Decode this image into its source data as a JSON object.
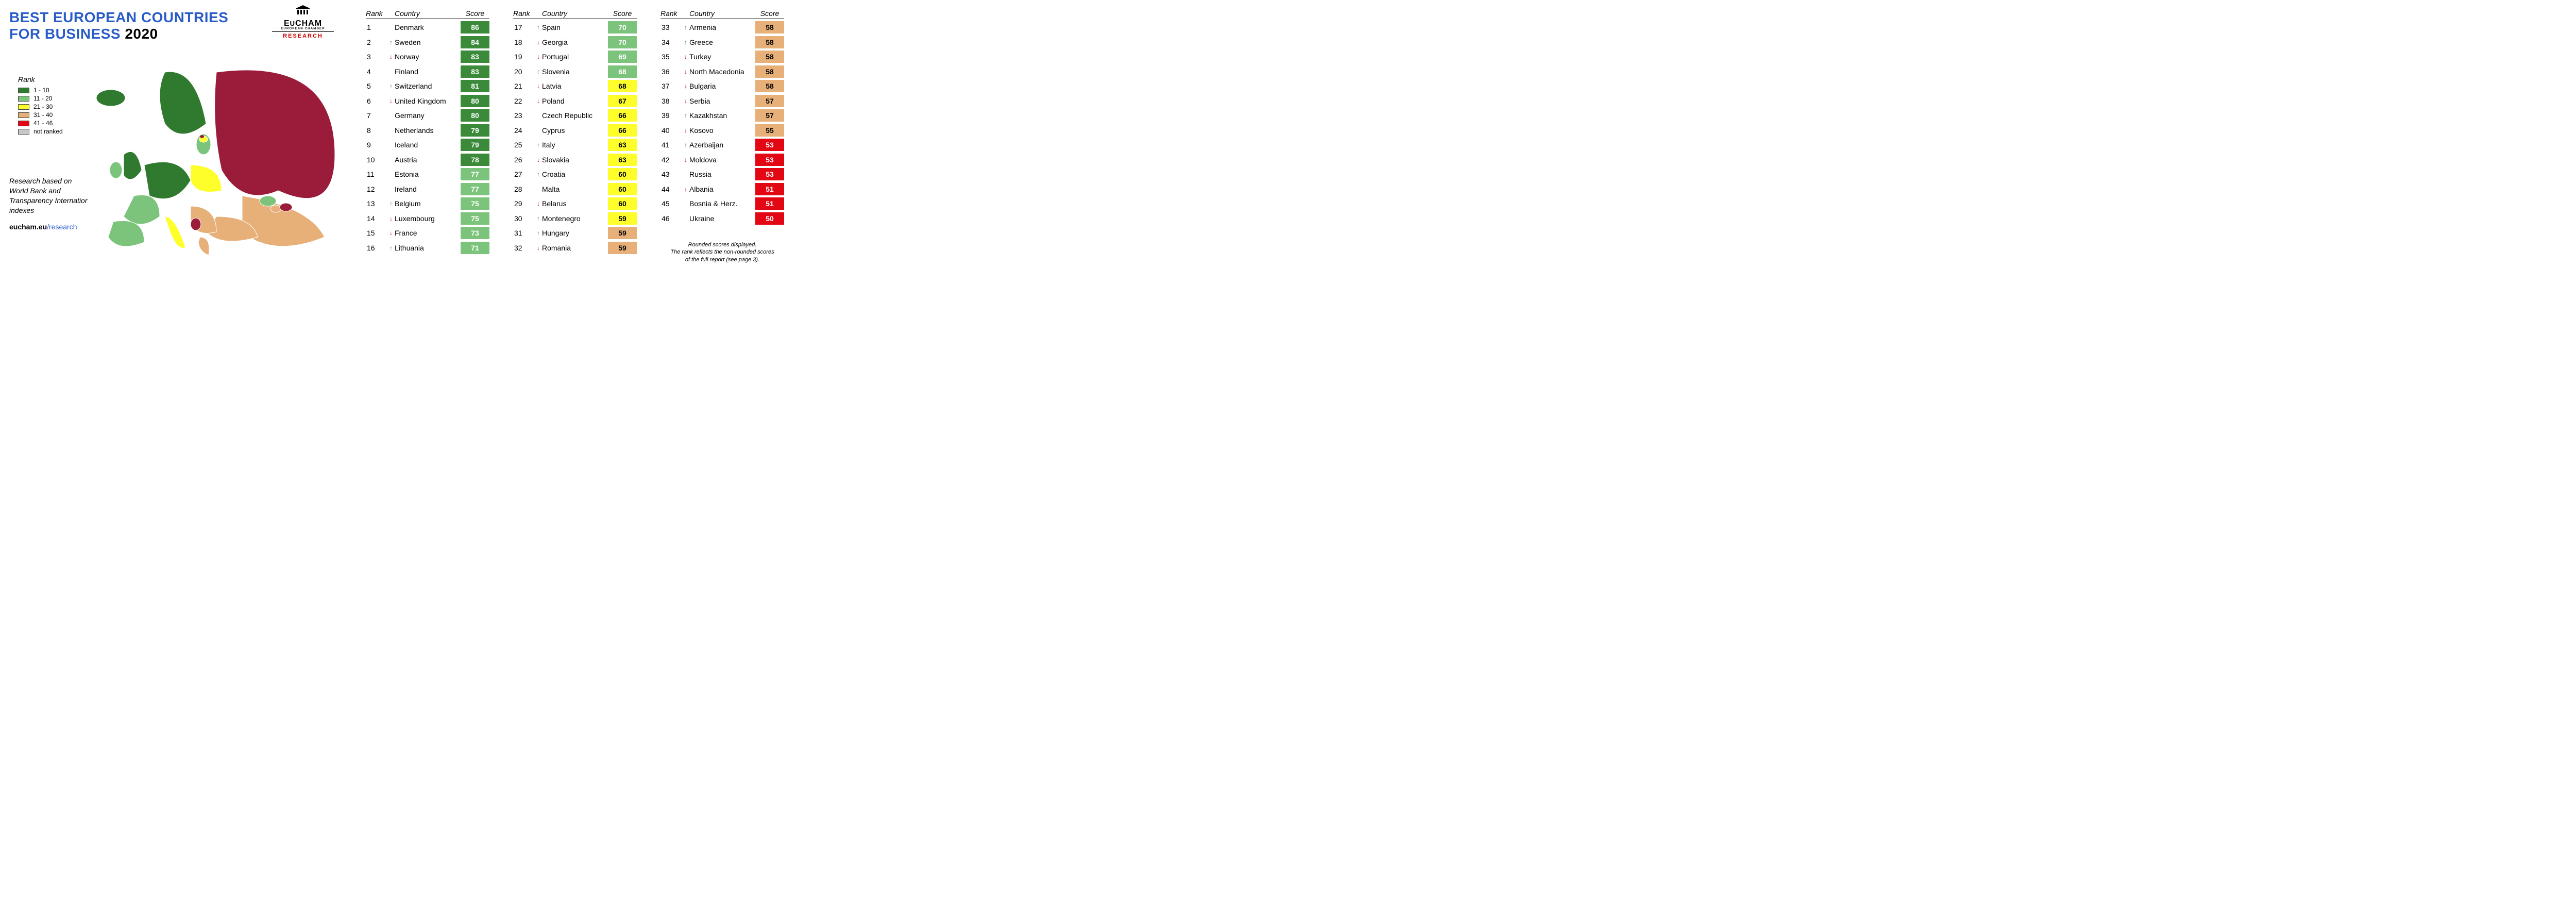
{
  "title_line1": "BEST EUROPEAN COUNTRIES",
  "title_line2_prefix": "FOR BUSINESS ",
  "title_year": "2020",
  "title_color_blue": "#2a5cc8",
  "title_color_black": "#000000",
  "title_fontsize": 28,
  "logo": {
    "name": "EUCHAM",
    "sub": "EUROPEAN CHAMBER",
    "research": "RESEARCH",
    "research_color": "#cc0000"
  },
  "legend": {
    "title": "Rank",
    "items": [
      {
        "label": "1 - 10",
        "color": "#2f7a2f"
      },
      {
        "label": "11 - 20",
        "color": "#7cc47c"
      },
      {
        "label": "21 - 30",
        "color": "#feff2a"
      },
      {
        "label": "31 - 40",
        "color": "#e6b078"
      },
      {
        "label": "41 - 46",
        "color": "#e30613"
      },
      {
        "label": "not ranked",
        "color": "#c8c8c8"
      }
    ]
  },
  "note_line1": "Research based on",
  "note_line2": "World Bank and",
  "note_line3": "Transparency International",
  "note_line4": "indexes",
  "url_domain": "eucham.eu",
  "url_path": "/research",
  "map": {
    "type": "choropleth-map",
    "region": "Europe",
    "background_color": "#ffffff",
    "border_color": "#ffffff",
    "colors_by_rank_bucket": {
      "1-10": "#2f7a2f",
      "11-20": "#7cc47c",
      "21-30": "#feff2a",
      "31-40": "#e6b078",
      "41-46": "#9b1c3a",
      "not_ranked": "#c8c8c8"
    }
  },
  "score_colors": {
    "dark_green": {
      "bg": "#3a8a3a",
      "fg": "#ffffff"
    },
    "light_green": {
      "bg": "#7cc47c",
      "fg": "#ffffff"
    },
    "yellow": {
      "bg": "#feff2a",
      "fg": "#000000"
    },
    "tan": {
      "bg": "#e6b078",
      "fg": "#000000"
    },
    "red": {
      "bg": "#e30613",
      "fg": "#ffffff"
    }
  },
  "columns": {
    "rank": "Rank",
    "country": "Country",
    "score": "Score"
  },
  "rankings": [
    {
      "rank": 1,
      "country": "Denmark",
      "score": 86,
      "trend": "",
      "tier": "dark_green"
    },
    {
      "rank": 2,
      "country": "Sweden",
      "score": 84,
      "trend": "up",
      "tier": "dark_green"
    },
    {
      "rank": 3,
      "country": "Norway",
      "score": 83,
      "trend": "down",
      "tier": "dark_green"
    },
    {
      "rank": 4,
      "country": "Finland",
      "score": 83,
      "trend": "",
      "tier": "dark_green"
    },
    {
      "rank": 5,
      "country": "Switzerland",
      "score": 81,
      "trend": "up",
      "tier": "dark_green"
    },
    {
      "rank": 6,
      "country": "United Kingdom",
      "score": 80,
      "trend": "down",
      "tier": "dark_green"
    },
    {
      "rank": 7,
      "country": "Germany",
      "score": 80,
      "trend": "",
      "tier": "dark_green"
    },
    {
      "rank": 8,
      "country": "Netherlands",
      "score": 79,
      "trend": "",
      "tier": "dark_green"
    },
    {
      "rank": 9,
      "country": "Iceland",
      "score": 79,
      "trend": "",
      "tier": "dark_green"
    },
    {
      "rank": 10,
      "country": "Austria",
      "score": 78,
      "trend": "",
      "tier": "dark_green"
    },
    {
      "rank": 11,
      "country": "Estonia",
      "score": 77,
      "trend": "",
      "tier": "light_green"
    },
    {
      "rank": 12,
      "country": "Ireland",
      "score": 77,
      "trend": "",
      "tier": "light_green"
    },
    {
      "rank": 13,
      "country": "Belgium",
      "score": 75,
      "trend": "up",
      "tier": "light_green"
    },
    {
      "rank": 14,
      "country": "Luxembourg",
      "score": 75,
      "trend": "down",
      "tier": "light_green"
    },
    {
      "rank": 15,
      "country": "France",
      "score": 73,
      "trend": "down",
      "tier": "light_green"
    },
    {
      "rank": 16,
      "country": "Lithuania",
      "score": 71,
      "trend": "up",
      "tier": "light_green"
    },
    {
      "rank": 17,
      "country": "Spain",
      "score": 70,
      "trend": "up",
      "tier": "light_green"
    },
    {
      "rank": 18,
      "country": "Georgia",
      "score": 70,
      "trend": "down",
      "tier": "light_green"
    },
    {
      "rank": 19,
      "country": "Portugal",
      "score": 69,
      "trend": "down",
      "tier": "light_green"
    },
    {
      "rank": 20,
      "country": "Slovenia",
      "score": 68,
      "trend": "up",
      "tier": "light_green"
    },
    {
      "rank": 21,
      "country": "Latvia",
      "score": 68,
      "trend": "down",
      "tier": "yellow"
    },
    {
      "rank": 22,
      "country": "Poland",
      "score": 67,
      "trend": "down",
      "tier": "yellow"
    },
    {
      "rank": 23,
      "country": "Czech Republic",
      "score": 66,
      "trend": "",
      "tier": "yellow"
    },
    {
      "rank": 24,
      "country": "Cyprus",
      "score": 66,
      "trend": "",
      "tier": "yellow"
    },
    {
      "rank": 25,
      "country": "Italy",
      "score": 63,
      "trend": "up",
      "tier": "yellow"
    },
    {
      "rank": 26,
      "country": "Slovakia",
      "score": 63,
      "trend": "down",
      "tier": "yellow"
    },
    {
      "rank": 27,
      "country": "Croatia",
      "score": 60,
      "trend": "up",
      "tier": "yellow"
    },
    {
      "rank": 28,
      "country": "Malta",
      "score": 60,
      "trend": "",
      "tier": "yellow"
    },
    {
      "rank": 29,
      "country": "Belarus",
      "score": 60,
      "trend": "down",
      "tier": "yellow"
    },
    {
      "rank": 30,
      "country": "Montenegro",
      "score": 59,
      "trend": "up",
      "tier": "yellow"
    },
    {
      "rank": 31,
      "country": "Hungary",
      "score": 59,
      "trend": "up",
      "tier": "tan"
    },
    {
      "rank": 32,
      "country": "Romania",
      "score": 59,
      "trend": "down",
      "tier": "tan"
    },
    {
      "rank": 33,
      "country": "Armenia",
      "score": 58,
      "trend": "up",
      "tier": "tan"
    },
    {
      "rank": 34,
      "country": "Greece",
      "score": 58,
      "trend": "up",
      "tier": "tan"
    },
    {
      "rank": 35,
      "country": "Turkey",
      "score": 58,
      "trend": "down",
      "tier": "tan"
    },
    {
      "rank": 36,
      "country": "North Macedonia",
      "score": 58,
      "trend": "down",
      "tier": "tan"
    },
    {
      "rank": 37,
      "country": "Bulgaria",
      "score": 58,
      "trend": "down",
      "tier": "tan"
    },
    {
      "rank": 38,
      "country": "Serbia",
      "score": 57,
      "trend": "down",
      "tier": "tan"
    },
    {
      "rank": 39,
      "country": "Kazakhstan",
      "score": 57,
      "trend": "up",
      "tier": "tan"
    },
    {
      "rank": 40,
      "country": "Kosovo",
      "score": 55,
      "trend": "down",
      "tier": "tan"
    },
    {
      "rank": 41,
      "country": "Azerbaijan",
      "score": 53,
      "trend": "up",
      "tier": "red"
    },
    {
      "rank": 42,
      "country": "Moldova",
      "score": 53,
      "trend": "down",
      "tier": "red"
    },
    {
      "rank": 43,
      "country": "Russia",
      "score": 53,
      "trend": "",
      "tier": "red"
    },
    {
      "rank": 44,
      "country": "Albania",
      "score": 51,
      "trend": "down",
      "tier": "red"
    },
    {
      "rank": 45,
      "country": "Bosnia & Herz.",
      "score": 51,
      "trend": "",
      "tier": "red"
    },
    {
      "rank": 46,
      "country": "Ukraine",
      "score": 50,
      "trend": "",
      "tier": "red"
    }
  ],
  "table_split": [
    16,
    32,
    46
  ],
  "footnote_line1": "Rounded scores displayed.",
  "footnote_line2": "The rank reflects the non-rounded scores",
  "footnote_line3": "of the full report (see page 3)."
}
